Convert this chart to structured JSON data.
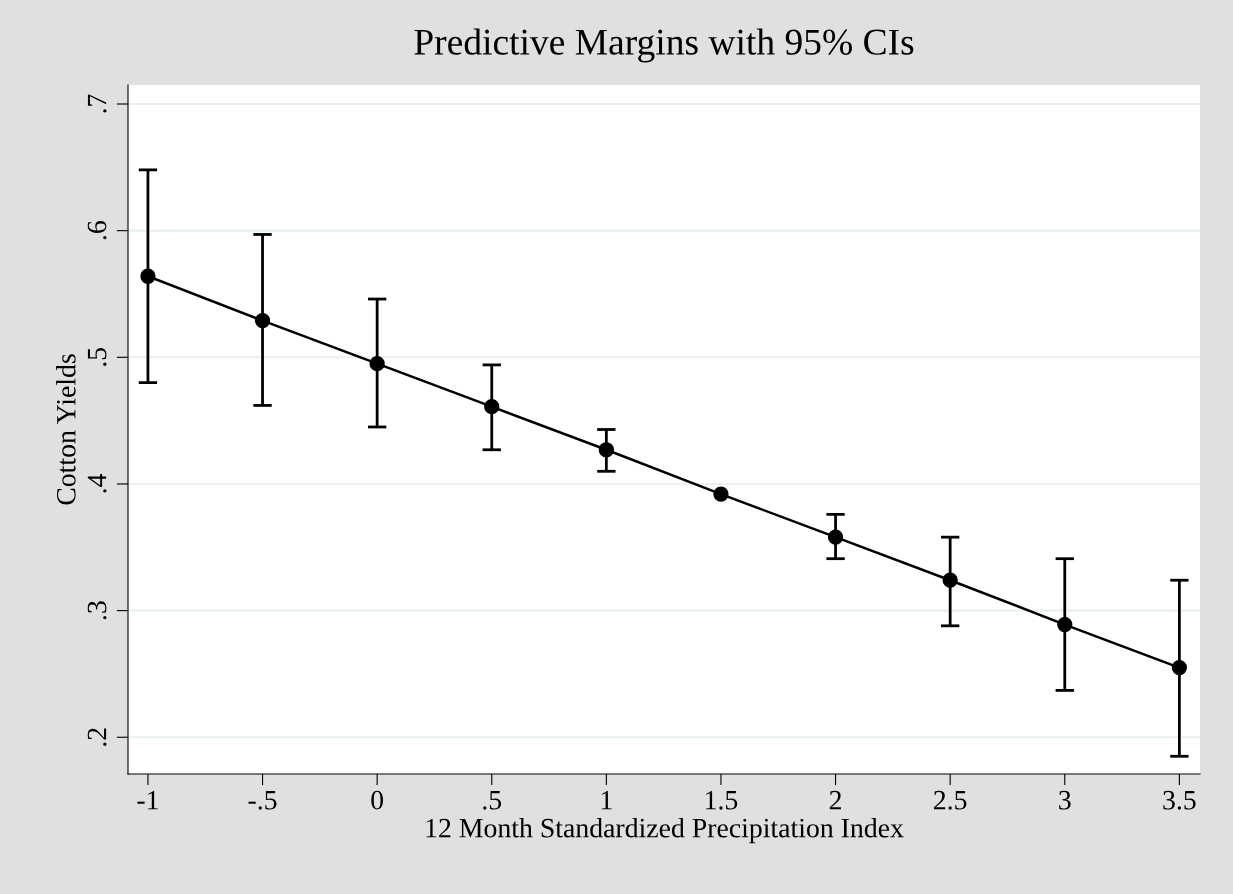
{
  "chart_data": {
    "type": "line",
    "title": "Predictive Margins with 95% CIs",
    "xlabel": "12 Month Standardized Precipitation Index",
    "ylabel": "Cotton Yields",
    "x": [
      -1,
      -0.5,
      0,
      0.5,
      1,
      1.5,
      2,
      2.5,
      3,
      3.5
    ],
    "series": [
      {
        "color": "#000000",
        "values": [
          0.564,
          0.529,
          0.495,
          0.461,
          0.427,
          0.392,
          0.358,
          0.324,
          0.289,
          0.255
        ],
        "errors": [
          [
            0.48,
            0.648
          ],
          [
            0.462,
            0.597
          ],
          [
            0.445,
            0.546
          ],
          [
            0.427,
            0.494
          ],
          [
            0.41,
            0.443
          ],
          null,
          [
            0.341,
            0.376
          ],
          [
            0.288,
            0.358
          ],
          [
            0.237,
            0.341
          ],
          [
            0.185,
            0.324
          ]
        ]
      }
    ],
    "marker": "circle",
    "line_style": "solid",
    "grid": "y",
    "xlim": [
      -1.087,
      3.59
    ],
    "ylim": [
      0.171,
      0.715
    ],
    "xticks": [
      -1,
      {
        "value": -0.5,
        "label": "-.5"
      },
      0,
      {
        "value": 0.5,
        "label": ".5"
      },
      1,
      1.5,
      2,
      2.5,
      3,
      3.5
    ],
    "yticks": [
      {
        "value": 0.2,
        "label": ".2"
      },
      {
        "value": 0.3,
        "label": ".3"
      },
      {
        "value": 0.4,
        "label": ".4"
      },
      {
        "value": 0.5,
        "label": ".5"
      },
      {
        "value": 0.6,
        "label": ".6"
      },
      {
        "value": 0.7,
        "label": ".7"
      }
    ]
  }
}
